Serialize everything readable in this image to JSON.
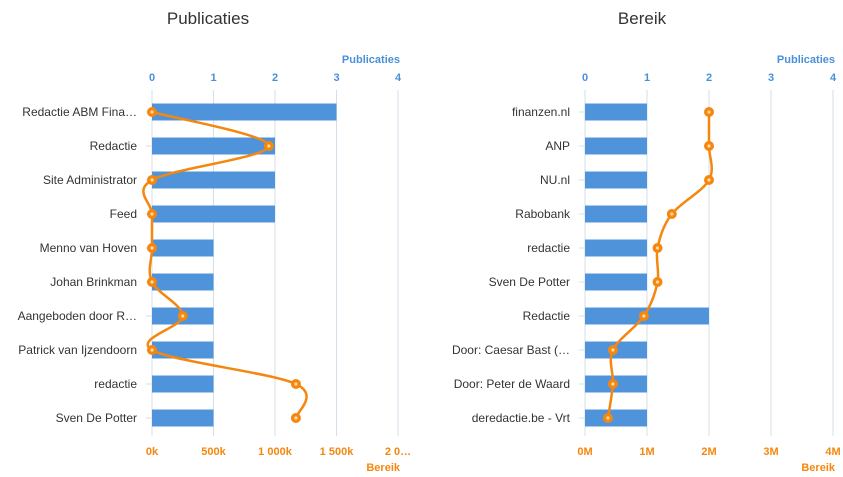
{
  "colors": {
    "bar": "#4f94db",
    "line": "#f5870f",
    "grid": "#d6dfe8",
    "top_axis_text": "#4a90d9",
    "bottom_axis_text": "#f5870f"
  },
  "chart_data": [
    {
      "type": "bar",
      "title": "Publicaties",
      "top_axis_title": "Publicaties",
      "bottom_axis_title": "Bereik",
      "categories": [
        "Redactie ABM Fina…",
        "Redactie",
        "Site Administrator",
        "Feed",
        "Menno van Hoven",
        "Johan Brinkman",
        "Aangeboden door R…",
        "Patrick van Ijzendoorn",
        "redactie",
        "Sven De Potter"
      ],
      "series": [
        {
          "name": "Publicaties",
          "type": "bar",
          "axis": "top",
          "values": [
            3,
            2,
            2,
            2,
            1,
            1,
            1,
            1,
            1,
            1
          ]
        },
        {
          "name": "Bereik",
          "type": "line",
          "axis": "bottom",
          "values": [
            0,
            950000,
            0,
            0,
            0,
            0,
            250000,
            0,
            1170000,
            1170000
          ]
        }
      ],
      "top_axis": {
        "ticks": [
          "0",
          "1",
          "2",
          "3",
          "4"
        ],
        "range": [
          0,
          4
        ]
      },
      "bottom_axis": {
        "ticks": [
          "0k",
          "500k",
          "1 000k",
          "1 500k",
          "2 0…"
        ],
        "range": [
          0,
          2000000
        ]
      },
      "grid": true
    },
    {
      "type": "bar",
      "title": "Bereik",
      "top_axis_title": "Publicaties",
      "bottom_axis_title": "Bereik",
      "categories": [
        "finanzen.nl",
        "ANP",
        "NU.nl",
        "Rabobank",
        "redactie",
        "Sven De Potter",
        "Redactie",
        "Door: Caesar Bast (…",
        "Door: Peter de Waard",
        "deredactie.be - Vrt"
      ],
      "series": [
        {
          "name": "Publicaties",
          "type": "bar",
          "axis": "top",
          "values": [
            1,
            1,
            1,
            1,
            1,
            1,
            2,
            1,
            1,
            1
          ]
        },
        {
          "name": "Bereik",
          "type": "line",
          "axis": "bottom",
          "values": [
            2000000,
            2000000,
            2000000,
            1400000,
            1170000,
            1170000,
            950000,
            450000,
            450000,
            370000
          ]
        }
      ],
      "top_axis": {
        "ticks": [
          "0",
          "1",
          "2",
          "3",
          "4"
        ],
        "range": [
          0,
          4
        ]
      },
      "bottom_axis": {
        "ticks": [
          "0M",
          "1M",
          "2M",
          "3M",
          "4M"
        ],
        "range": [
          0,
          4000000
        ]
      },
      "grid": true
    }
  ]
}
